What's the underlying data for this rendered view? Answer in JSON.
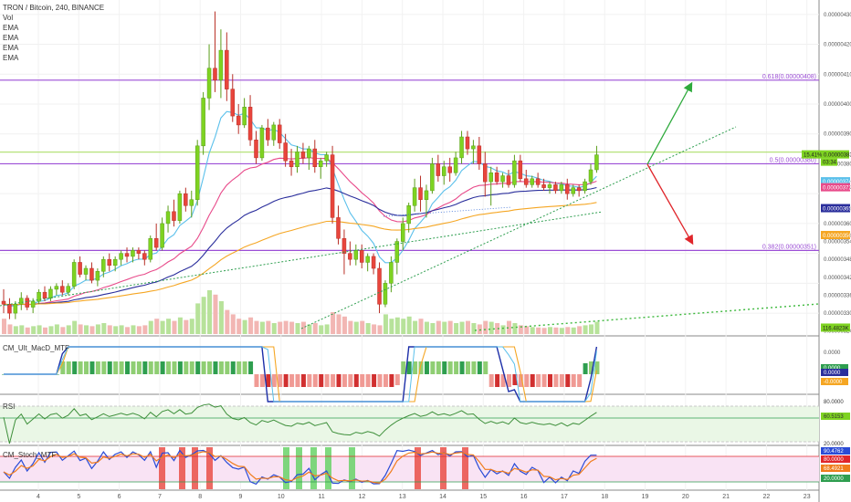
{
  "header": {
    "symbol_line": "TRON / Bitcoin, 240, BINANCE",
    "indicators": [
      "Vol",
      "EMA",
      "EMA",
      "EMA",
      "EMA"
    ]
  },
  "panes": {
    "macd_label": "CM_Ult_MacD_MTF",
    "rsi_label": "RSI",
    "stoch_label": "CM_Stoch_MTF"
  },
  "colors": {
    "up": "#7ed321",
    "down": "#e8453c",
    "vol_up": "#b7e29a",
    "vol_down": "#f2b6b3",
    "ema_cyan": "#5bc0eb",
    "ema_pink": "#e84a8a",
    "ema_navy": "#2a2e9c",
    "ema_orange": "#f5a623",
    "fib": "#9c4fd6",
    "fib_green": "#b6e27a",
    "trend_green": "#2e9e4f",
    "arrow_up": "#2eaa3c",
    "arrow_down": "#e0262b"
  },
  "chart_data": {
    "type": "candlestick",
    "price_axis": [
      "0.00000430",
      "0.00000420",
      "0.00000410",
      "0.00000400",
      "0.00000390",
      "0.00000380",
      "0.00000374",
      "0.00000372",
      "0.00000365",
      "0.00000360",
      "0.00000356",
      "0.00000354",
      "0.00000348",
      "0.00000342",
      "0.00000336",
      "0.00000330",
      "0.00000324"
    ],
    "date_axis": [
      "4",
      "5",
      "6",
      "7",
      "8",
      "9",
      "10",
      "11",
      "12",
      "13",
      "14",
      "15",
      "16",
      "17",
      "18",
      "19",
      "20",
      "21",
      "22",
      "23"
    ],
    "badges": [
      {
        "text": "15.41% 0.00000383",
        "sub": "03:34",
        "color": "#7ed321",
        "text_color": "#222",
        "price": 3.83e-06
      },
      {
        "text": "0.00000374",
        "color": "#5bc0eb",
        "text_color": "#fff",
        "price": 3.74e-06
      },
      {
        "text": "0.00000372",
        "color": "#e84a8a",
        "text_color": "#fff",
        "price": 3.72e-06
      },
      {
        "text": "0.00000365",
        "color": "#2a2e9c",
        "text_color": "#fff",
        "price": 3.65e-06
      },
      {
        "text": "0.00000356",
        "color": "#f5a623",
        "text_color": "#fff",
        "price": 3.56e-06
      },
      {
        "text": "116.4823K",
        "color": "#7ed321",
        "text_color": "#222",
        "price": 3.25e-06
      }
    ],
    "fib_levels": [
      {
        "label": "0.618(0.00000408)",
        "price": 4.08e-06
      },
      {
        "label": "0.5(0.00000380)",
        "price": 3.8e-06
      },
      {
        "label": "0.382(0.00000351)",
        "price": 3.51e-06
      }
    ],
    "macd_axis": [
      "0.0000",
      "0.0000",
      "0.0000",
      "-0.0000"
    ],
    "rsi_axis": [
      "80.0000",
      "60.5153",
      "20.0000"
    ],
    "stoch_axis": [
      "90.4762",
      "80.0000",
      "68.4921",
      "20.0000"
    ],
    "candles": [
      {
        "o": 3.34e-06,
        "h": 3.38e-06,
        "l": 3.3e-06,
        "c": 3.33e-06
      },
      {
        "o": 3.33e-06,
        "h": 3.35e-06,
        "l": 3.28e-06,
        "c": 3.3e-06
      },
      {
        "o": 3.3e-06,
        "h": 3.34e-06,
        "l": 3.28e-06,
        "c": 3.33e-06
      },
      {
        "o": 3.33e-06,
        "h": 3.37e-06,
        "l": 3.31e-06,
        "c": 3.35e-06
      },
      {
        "o": 3.35e-06,
        "h": 3.36e-06,
        "l": 3.31e-06,
        "c": 3.32e-06
      },
      {
        "o": 3.32e-06,
        "h": 3.35e-06,
        "l": 3.3e-06,
        "c": 3.34e-06
      },
      {
        "o": 3.34e-06,
        "h": 3.38e-06,
        "l": 3.33e-06,
        "c": 3.37e-06
      },
      {
        "o": 3.37e-06,
        "h": 3.39e-06,
        "l": 3.34e-06,
        "c": 3.35e-06
      },
      {
        "o": 3.35e-06,
        "h": 3.39e-06,
        "l": 3.34e-06,
        "c": 3.38e-06
      },
      {
        "o": 3.38e-06,
        "h": 3.4e-06,
        "l": 3.36e-06,
        "c": 3.39e-06
      },
      {
        "o": 3.39e-06,
        "h": 3.41e-06,
        "l": 3.36e-06,
        "c": 3.37e-06
      },
      {
        "o": 3.37e-06,
        "h": 3.4e-06,
        "l": 3.36e-06,
        "c": 3.39e-06
      },
      {
        "o": 3.39e-06,
        "h": 3.48e-06,
        "l": 3.38e-06,
        "c": 3.47e-06
      },
      {
        "o": 3.47e-06,
        "h": 3.49e-06,
        "l": 3.42e-06,
        "c": 3.43e-06
      },
      {
        "o": 3.43e-06,
        "h": 3.46e-06,
        "l": 3.41e-06,
        "c": 3.45e-06
      },
      {
        "o": 3.45e-06,
        "h": 3.47e-06,
        "l": 3.4e-06,
        "c": 3.41e-06
      },
      {
        "o": 3.41e-06,
        "h": 3.45e-06,
        "l": 3.39e-06,
        "c": 3.44e-06
      },
      {
        "o": 3.44e-06,
        "h": 3.49e-06,
        "l": 3.42e-06,
        "c": 3.48e-06
      },
      {
        "o": 3.48e-06,
        "h": 3.5e-06,
        "l": 3.44e-06,
        "c": 3.46e-06
      },
      {
        "o": 3.46e-06,
        "h": 3.49e-06,
        "l": 3.44e-06,
        "c": 3.48e-06
      },
      {
        "o": 3.48e-06,
        "h": 3.51e-06,
        "l": 3.46e-06,
        "c": 3.5e-06
      },
      {
        "o": 3.5e-06,
        "h": 3.52e-06,
        "l": 3.47e-06,
        "c": 3.49e-06
      },
      {
        "o": 3.49e-06,
        "h": 3.52e-06,
        "l": 3.47e-06,
        "c": 3.51e-06
      },
      {
        "o": 3.51e-06,
        "h": 3.52e-06,
        "l": 3.48e-06,
        "c": 3.5e-06
      },
      {
        "o": 3.5e-06,
        "h": 3.51e-06,
        "l": 3.46e-06,
        "c": 3.48e-06
      },
      {
        "o": 3.48e-06,
        "h": 3.56e-06,
        "l": 3.47e-06,
        "c": 3.55e-06
      },
      {
        "o": 3.55e-06,
        "h": 3.6e-06,
        "l": 3.51e-06,
        "c": 3.52e-06
      },
      {
        "o": 3.52e-06,
        "h": 3.62e-06,
        "l": 3.51e-06,
        "c": 3.6e-06
      },
      {
        "o": 3.6e-06,
        "h": 3.66e-06,
        "l": 3.57e-06,
        "c": 3.64e-06
      },
      {
        "o": 3.64e-06,
        "h": 3.68e-06,
        "l": 3.59e-06,
        "c": 3.61e-06
      },
      {
        "o": 3.61e-06,
        "h": 3.71e-06,
        "l": 3.6e-06,
        "c": 3.7e-06
      },
      {
        "o": 3.7e-06,
        "h": 3.72e-06,
        "l": 3.64e-06,
        "c": 3.66e-06
      },
      {
        "o": 3.66e-06,
        "h": 3.71e-06,
        "l": 3.62e-06,
        "c": 3.68e-06
      },
      {
        "o": 3.68e-06,
        "h": 3.88e-06,
        "l": 3.66e-06,
        "c": 3.86e-06
      },
      {
        "o": 3.86e-06,
        "h": 4.04e-06,
        "l": 3.83e-06,
        "c": 4.02e-06
      },
      {
        "o": 4.02e-06,
        "h": 4.2e-06,
        "l": 3.98e-06,
        "c": 4.12e-06
      },
      {
        "o": 4.12e-06,
        "h": 4.31e-06,
        "l": 4.04e-06,
        "c": 4.08e-06
      },
      {
        "o": 4.08e-06,
        "h": 4.25e-06,
        "l": 4.02e-06,
        "c": 4.18e-06
      },
      {
        "o": 4.18e-06,
        "h": 4.24e-06,
        "l": 4.01e-06,
        "c": 4.05e-06
      },
      {
        "o": 4.05e-06,
        "h": 4.1e-06,
        "l": 3.94e-06,
        "c": 3.96e-06
      },
      {
        "o": 3.96e-06,
        "h": 4e-06,
        "l": 3.9e-06,
        "c": 3.93e-06
      },
      {
        "o": 3.93e-06,
        "h": 4.02e-06,
        "l": 3.92e-06,
        "c": 3.99e-06
      },
      {
        "o": 3.99e-06,
        "h": 4.03e-06,
        "l": 3.86e-06,
        "c": 3.88e-06
      },
      {
        "o": 3.88e-06,
        "h": 3.91e-06,
        "l": 3.8e-06,
        "c": 3.82e-06
      },
      {
        "o": 3.82e-06,
        "h": 3.93e-06,
        "l": 3.81e-06,
        "c": 3.92e-06
      },
      {
        "o": 3.92e-06,
        "h": 3.95e-06,
        "l": 3.86e-06,
        "c": 3.88e-06
      },
      {
        "o": 3.88e-06,
        "h": 3.94e-06,
        "l": 3.86e-06,
        "c": 3.93e-06
      },
      {
        "o": 3.93e-06,
        "h": 3.95e-06,
        "l": 3.85e-06,
        "c": 3.87e-06
      },
      {
        "o": 3.87e-06,
        "h": 3.9e-06,
        "l": 3.79e-06,
        "c": 3.81e-06
      },
      {
        "o": 3.81e-06,
        "h": 3.85e-06,
        "l": 3.76e-06,
        "c": 3.79e-06
      },
      {
        "o": 3.79e-06,
        "h": 3.86e-06,
        "l": 3.77e-06,
        "c": 3.84e-06
      },
      {
        "o": 3.84e-06,
        "h": 3.87e-06,
        "l": 3.8e-06,
        "c": 3.82e-06
      },
      {
        "o": 3.82e-06,
        "h": 3.86e-06,
        "l": 3.78e-06,
        "c": 3.85e-06
      },
      {
        "o": 3.85e-06,
        "h": 3.88e-06,
        "l": 3.77e-06,
        "c": 3.79e-06
      },
      {
        "o": 3.79e-06,
        "h": 3.82e-06,
        "l": 3.75e-06,
        "c": 3.81e-06
      },
      {
        "o": 3.81e-06,
        "h": 3.84e-06,
        "l": 3.79e-06,
        "c": 3.83e-06
      },
      {
        "o": 3.83e-06,
        "h": 3.86e-06,
        "l": 3.6e-06,
        "c": 3.62e-06
      },
      {
        "o": 3.62e-06,
        "h": 3.66e-06,
        "l": 3.53e-06,
        "c": 3.55e-06
      },
      {
        "o": 3.55e-06,
        "h": 3.58e-06,
        "l": 3.43e-06,
        "c": 3.5e-06
      },
      {
        "o": 3.5e-06,
        "h": 3.54e-06,
        "l": 3.46e-06,
        "c": 3.48e-06
      },
      {
        "o": 3.48e-06,
        "h": 3.53e-06,
        "l": 3.46e-06,
        "c": 3.51e-06
      },
      {
        "o": 3.51e-06,
        "h": 3.53e-06,
        "l": 3.45e-06,
        "c": 3.47e-06
      },
      {
        "o": 3.47e-06,
        "h": 3.5e-06,
        "l": 3.44e-06,
        "c": 3.49e-06
      },
      {
        "o": 3.49e-06,
        "h": 3.5e-06,
        "l": 3.43e-06,
        "c": 3.45e-06
      },
      {
        "o": 3.45e-06,
        "h": 3.47e-06,
        "l": 3.3e-06,
        "c": 3.33e-06
      },
      {
        "o": 3.33e-06,
        "h": 3.41e-06,
        "l": 3.32e-06,
        "c": 3.4e-06
      },
      {
        "o": 3.4e-06,
        "h": 3.49e-06,
        "l": 3.37e-06,
        "c": 3.47e-06
      },
      {
        "o": 3.47e-06,
        "h": 3.55e-06,
        "l": 3.43e-06,
        "c": 3.54e-06
      },
      {
        "o": 3.54e-06,
        "h": 3.62e-06,
        "l": 3.51e-06,
        "c": 3.6e-06
      },
      {
        "o": 3.6e-06,
        "h": 3.67e-06,
        "l": 3.57e-06,
        "c": 3.66e-06
      },
      {
        "o": 3.66e-06,
        "h": 3.75e-06,
        "l": 3.64e-06,
        "c": 3.72e-06
      },
      {
        "o": 3.72e-06,
        "h": 3.76e-06,
        "l": 3.64e-06,
        "c": 3.68e-06
      },
      {
        "o": 3.68e-06,
        "h": 3.73e-06,
        "l": 3.62e-06,
        "c": 3.71e-06
      },
      {
        "o": 3.71e-06,
        "h": 3.82e-06,
        "l": 3.7e-06,
        "c": 3.8e-06
      },
      {
        "o": 3.8e-06,
        "h": 3.83e-06,
        "l": 3.74e-06,
        "c": 3.76e-06
      },
      {
        "o": 3.76e-06,
        "h": 3.81e-06,
        "l": 3.73e-06,
        "c": 3.79e-06
      },
      {
        "o": 3.79e-06,
        "h": 3.82e-06,
        "l": 3.74e-06,
        "c": 3.77e-06
      },
      {
        "o": 3.77e-06,
        "h": 3.84e-06,
        "l": 3.76e-06,
        "c": 3.82e-06
      },
      {
        "o": 3.82e-06,
        "h": 3.91e-06,
        "l": 3.8e-06,
        "c": 3.89e-06
      },
      {
        "o": 3.89e-06,
        "h": 3.91e-06,
        "l": 3.83e-06,
        "c": 3.85e-06
      },
      {
        "o": 3.85e-06,
        "h": 3.88e-06,
        "l": 3.8e-06,
        "c": 3.86e-06
      },
      {
        "o": 3.86e-06,
        "h": 3.89e-06,
        "l": 3.78e-06,
        "c": 3.8e-06
      },
      {
        "o": 3.8e-06,
        "h": 3.84e-06,
        "l": 3.69e-06,
        "c": 3.74e-06
      },
      {
        "o": 3.74e-06,
        "h": 3.79e-06,
        "l": 3.66e-06,
        "c": 3.77e-06
      },
      {
        "o": 3.77e-06,
        "h": 3.79e-06,
        "l": 3.73e-06,
        "c": 3.74e-06
      },
      {
        "o": 3.74e-06,
        "h": 3.77e-06,
        "l": 3.72e-06,
        "c": 3.76e-06
      },
      {
        "o": 3.76e-06,
        "h": 3.78e-06,
        "l": 3.72e-06,
        "c": 3.73e-06
      },
      {
        "o": 3.73e-06,
        "h": 3.83e-06,
        "l": 3.72e-06,
        "c": 3.81e-06
      },
      {
        "o": 3.81e-06,
        "h": 3.83e-06,
        "l": 3.74e-06,
        "c": 3.75e-06
      },
      {
        "o": 3.75e-06,
        "h": 3.78e-06,
        "l": 3.72e-06,
        "c": 3.73e-06
      },
      {
        "o": 3.73e-06,
        "h": 3.76e-06,
        "l": 3.72e-06,
        "c": 3.75e-06
      },
      {
        "o": 3.75e-06,
        "h": 3.77e-06,
        "l": 3.72e-06,
        "c": 3.73e-06
      },
      {
        "o": 3.73e-06,
        "h": 3.75e-06,
        "l": 3.71e-06,
        "c": 3.72e-06
      },
      {
        "o": 3.72e-06,
        "h": 3.74e-06,
        "l": 3.7e-06,
        "c": 3.73e-06
      },
      {
        "o": 3.73e-06,
        "h": 3.74e-06,
        "l": 3.7e-06,
        "c": 3.71e-06
      },
      {
        "o": 3.71e-06,
        "h": 3.74e-06,
        "l": 3.7e-06,
        "c": 3.73e-06
      },
      {
        "o": 3.73e-06,
        "h": 3.75e-06,
        "l": 3.68e-06,
        "c": 3.7e-06
      },
      {
        "o": 3.7e-06,
        "h": 3.73e-06,
        "l": 3.69e-06,
        "c": 3.72e-06
      },
      {
        "o": 3.72e-06,
        "h": 3.73e-06,
        "l": 3.69e-06,
        "c": 3.71e-06
      },
      {
        "o": 3.71e-06,
        "h": 3.75e-06,
        "l": 3.7e-06,
        "c": 3.74e-06
      },
      {
        "o": 3.74e-06,
        "h": 3.8e-06,
        "l": 3.73e-06,
        "c": 3.78e-06
      },
      {
        "o": 3.78e-06,
        "h": 3.86e-06,
        "l": 3.77e-06,
        "c": 3.83e-06
      }
    ],
    "volumes": [
      0.35,
      0.22,
      0.18,
      0.2,
      0.15,
      0.18,
      0.2,
      0.15,
      0.18,
      0.22,
      0.16,
      0.2,
      0.3,
      0.22,
      0.2,
      0.18,
      0.22,
      0.25,
      0.2,
      0.18,
      0.2,
      0.16,
      0.2,
      0.18,
      0.2,
      0.3,
      0.35,
      0.3,
      0.35,
      0.3,
      0.38,
      0.32,
      0.35,
      0.7,
      0.85,
      1.0,
      0.9,
      0.75,
      0.55,
      0.45,
      0.35,
      0.32,
      0.38,
      0.3,
      0.28,
      0.3,
      0.25,
      0.28,
      0.3,
      0.28,
      0.25,
      0.28,
      0.22,
      0.25,
      0.2,
      0.22,
      0.5,
      0.45,
      0.4,
      0.3,
      0.28,
      0.3,
      0.25,
      0.22,
      0.2,
      0.45,
      0.35,
      0.38,
      0.35,
      0.4,
      0.3,
      0.35,
      0.28,
      0.25,
      0.3,
      0.28,
      0.3,
      0.25,
      0.28,
      0.3,
      0.25,
      0.22,
      0.3,
      0.28,
      0.25,
      0.2,
      0.3,
      0.25,
      0.2,
      0.18,
      0.16,
      0.15,
      0.14,
      0.16,
      0.15,
      0.14,
      0.16,
      0.15,
      0.18,
      0.2,
      0.22,
      0.28
    ]
  }
}
